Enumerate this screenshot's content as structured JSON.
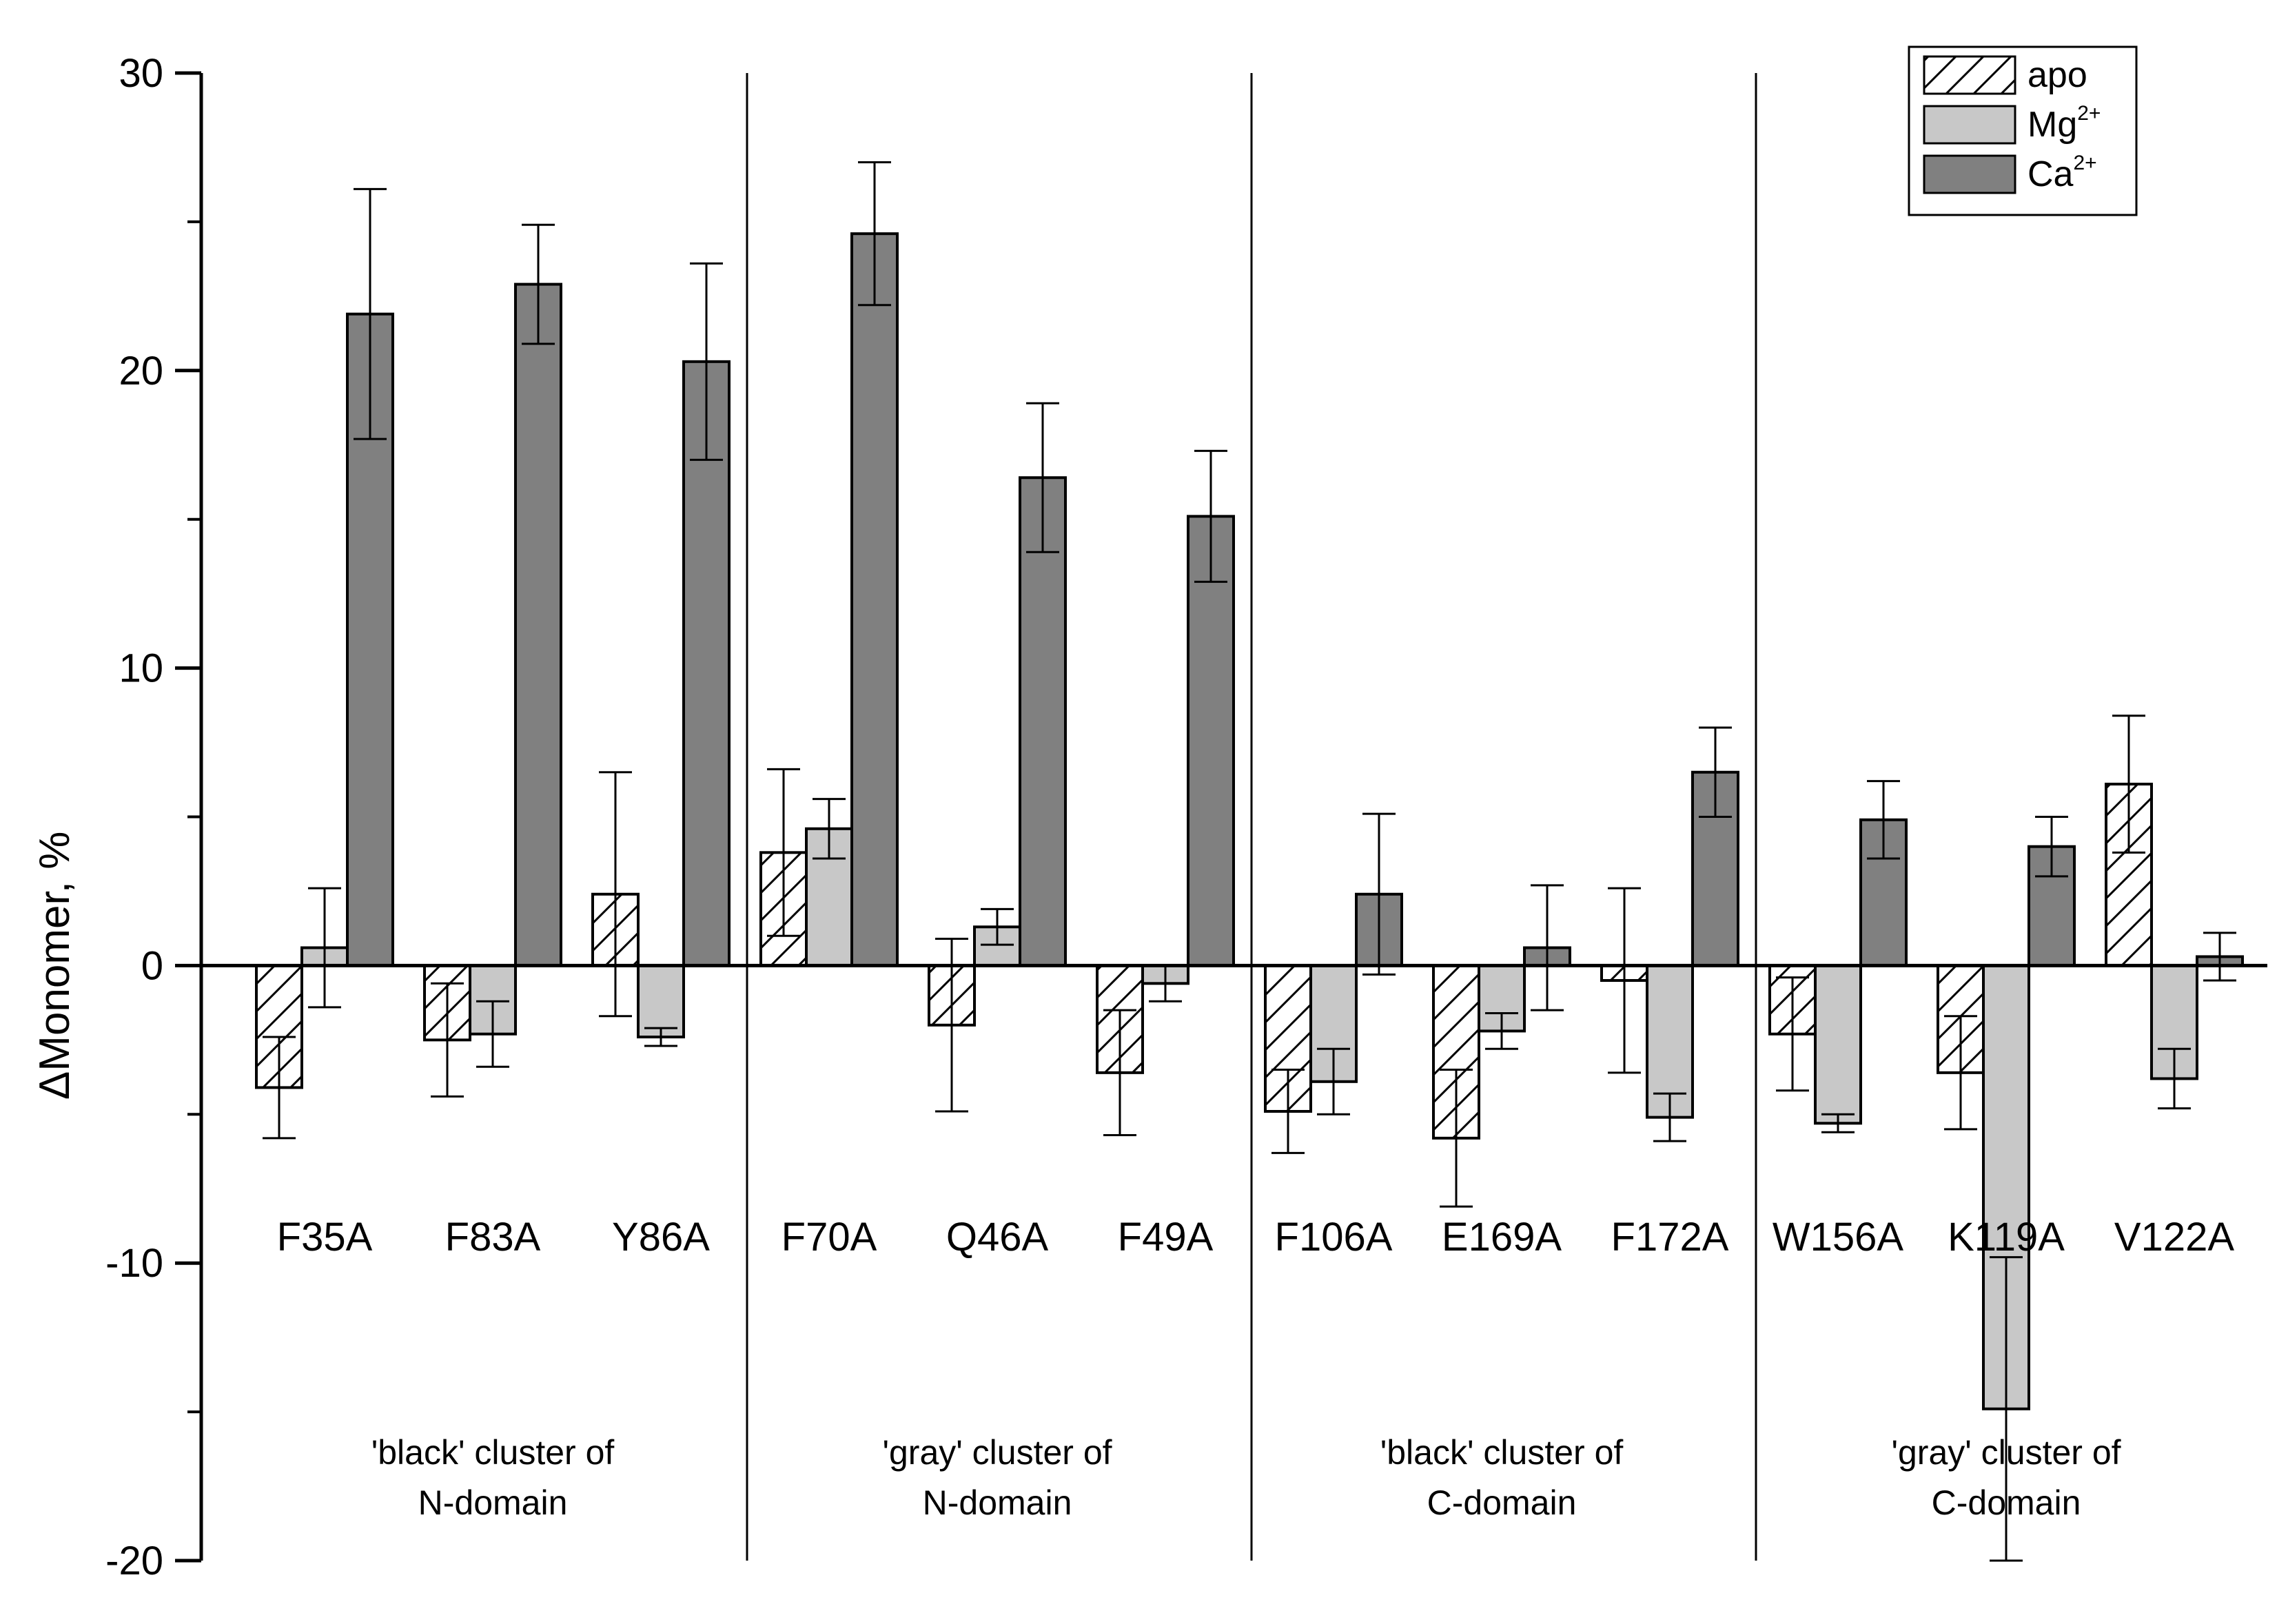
{
  "chart_data": {
    "type": "bar",
    "title": "",
    "xlabel": "",
    "ylabel": "ΔMonomer, %",
    "ylim": [
      -20,
      30
    ],
    "yticks": [
      30,
      20,
      10,
      0,
      -10,
      -20
    ],
    "grid": false,
    "legend_position": "top-right",
    "categories": [
      "F35A",
      "F83A",
      "Y86A",
      "F70A",
      "Q46A",
      "F49A",
      "F106A",
      "E169A",
      "F172A",
      "W156A",
      "K119A",
      "V122A"
    ],
    "series": [
      {
        "name": "apo",
        "legend_base": "apo",
        "legend_sup": "",
        "fill": "hatched",
        "color": "#ffffff",
        "values": [
          -4.1,
          -2.5,
          2.4,
          3.8,
          -2.0,
          -3.6,
          -4.9,
          -5.8,
          -0.5,
          -2.3,
          -3.6,
          6.1
        ],
        "errors": [
          1.7,
          1.9,
          4.1,
          2.8,
          2.9,
          2.1,
          1.4,
          2.3,
          3.1,
          1.9,
          1.9,
          2.3
        ]
      },
      {
        "name": "Mg2+",
        "legend_base": "Mg",
        "legend_sup": "2+",
        "fill": "solid",
        "color": "#c8c8c8",
        "values": [
          0.6,
          -2.3,
          -2.4,
          4.6,
          1.3,
          -0.6,
          -3.9,
          -2.2,
          -5.1,
          -5.3,
          -14.9,
          -3.8
        ],
        "errors": [
          2.0,
          1.1,
          0.3,
          1.0,
          0.6,
          0.6,
          1.1,
          0.6,
          0.8,
          0.3,
          5.1,
          1.0
        ]
      },
      {
        "name": "Ca2+",
        "legend_base": "Ca",
        "legend_sup": "2+",
        "fill": "solid",
        "color": "#808080",
        "values": [
          21.9,
          22.9,
          20.3,
          24.6,
          16.4,
          15.1,
          2.4,
          0.6,
          6.5,
          4.9,
          4.0,
          0.3
        ],
        "errors": [
          4.2,
          2.0,
          3.3,
          2.4,
          2.5,
          2.2,
          2.7,
          2.1,
          1.5,
          1.3,
          1.0,
          0.8
        ]
      }
    ],
    "groups": [
      {
        "line1": "'black' cluster of",
        "line2": "N-domain",
        "categories": [
          "F35A",
          "F83A",
          "Y86A"
        ]
      },
      {
        "line1": "'gray' cluster of",
        "line2": "N-domain",
        "categories": [
          "F70A",
          "Q46A",
          "F49A"
        ]
      },
      {
        "line1": "'black' cluster of",
        "line2": "C-domain",
        "categories": [
          "F106A",
          "E169A",
          "F172A"
        ]
      },
      {
        "line1": "'gray' cluster of",
        "line2": "C-domain",
        "categories": [
          "W156A",
          "K119A",
          "V122A"
        ]
      }
    ]
  }
}
